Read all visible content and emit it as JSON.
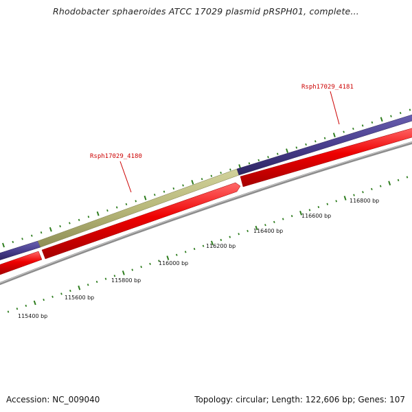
{
  "title": "Rhodobacter sphaeroides ATCC 17029 plasmid pRSPH01, complete...",
  "footer": {
    "accession": "Accession: NC_009040",
    "summary": "Topology: circular; Length: 122,606 bp; Genes: 107"
  },
  "genes": [
    {
      "label": "Rsph17029_4180"
    },
    {
      "label": "Rsph17029_4181"
    }
  ],
  "ruler_labels": [
    "115400 bp",
    "115600 bp",
    "115800 bp",
    "116000 bp",
    "116200 bp",
    "116400 bp",
    "116600 bp",
    "116800 bp"
  ],
  "colors": {
    "gene_purple": "#4a3f8f",
    "gene_olive": "#b8b87a",
    "gene_red": "#ee0000",
    "backbone": "#8c8c8c",
    "ticks": "#2e7d1e",
    "label_red": "#cc0000"
  }
}
